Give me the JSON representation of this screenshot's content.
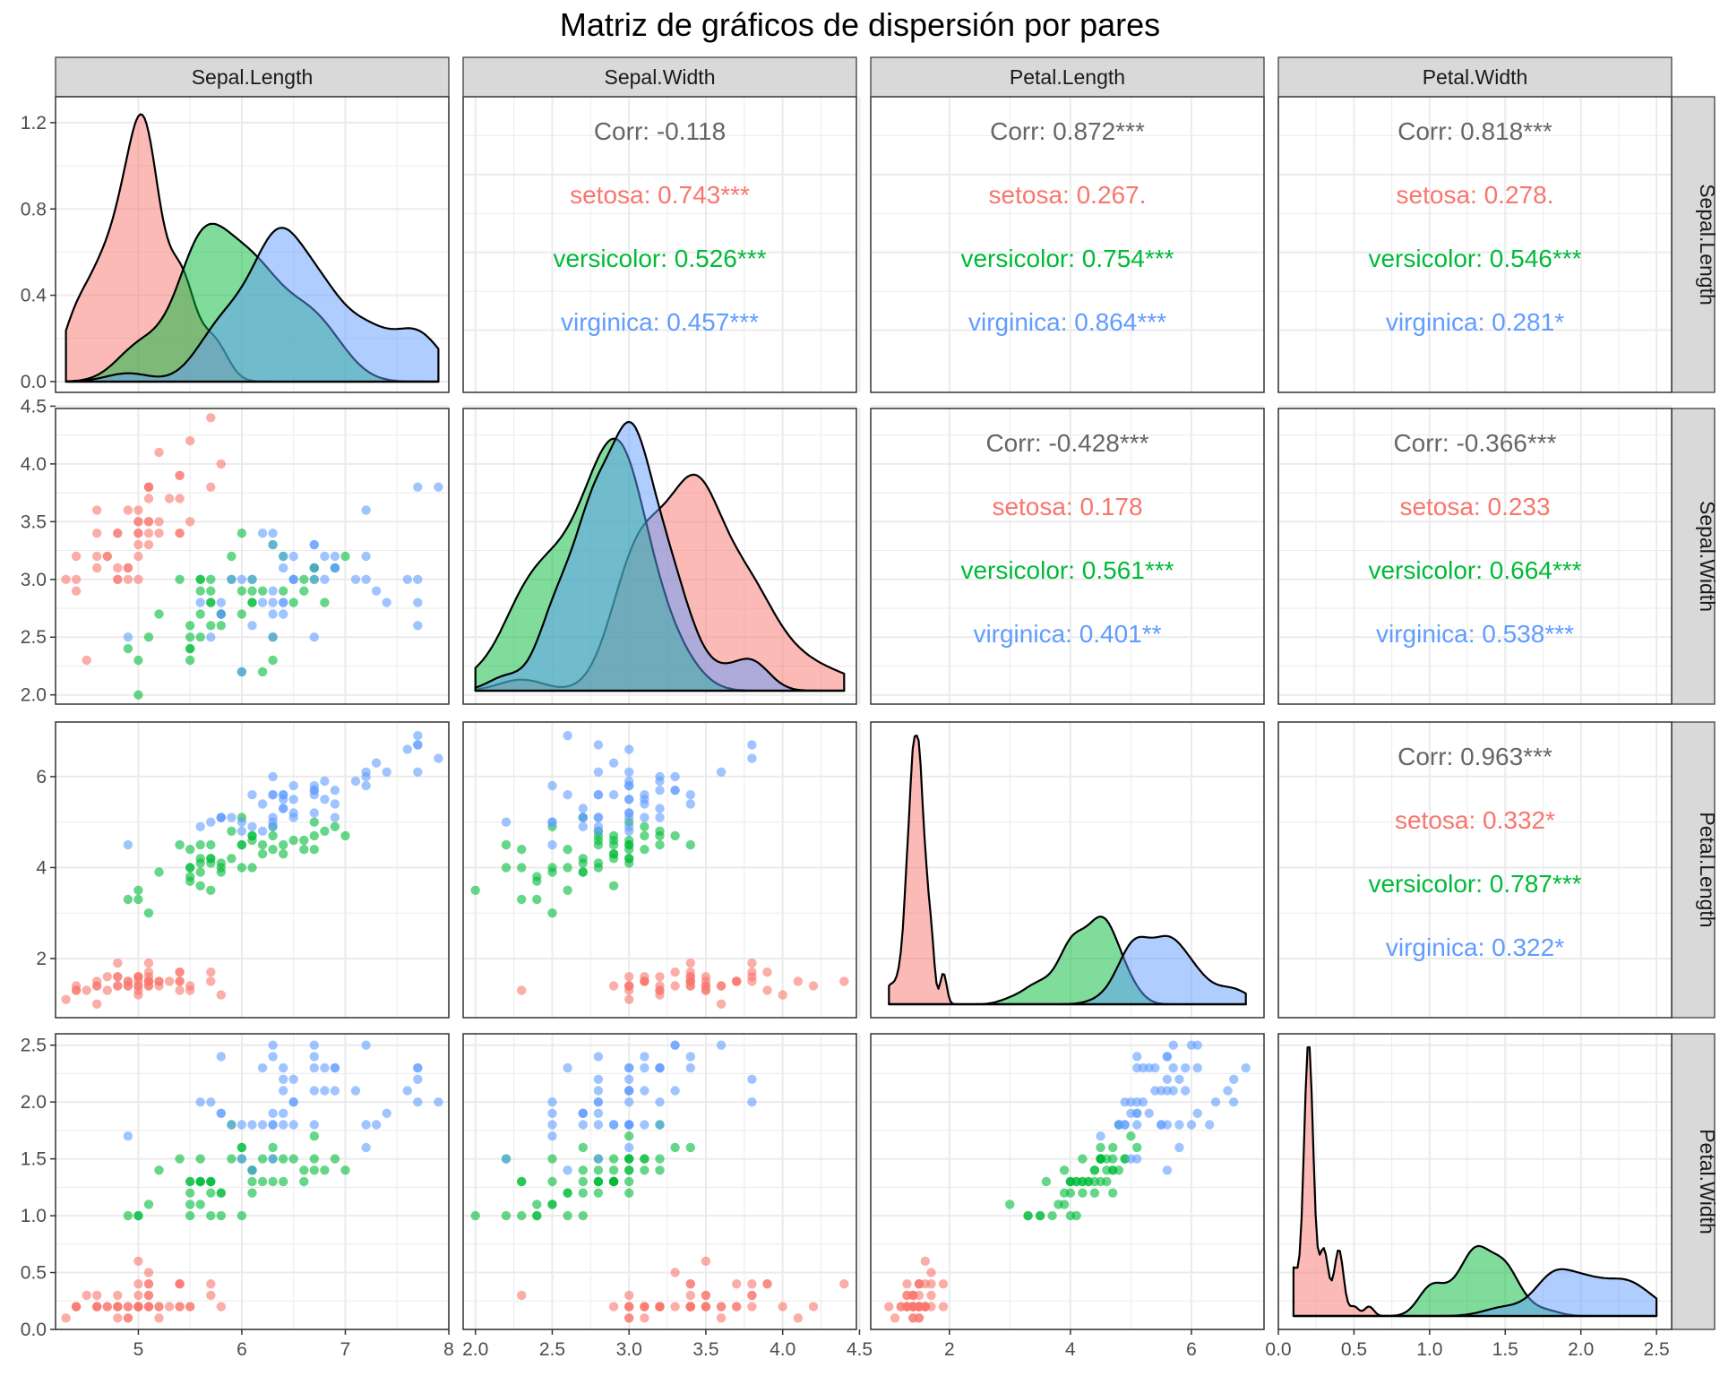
{
  "title": "Matriz de gráficos de dispersión por pares",
  "variables": [
    "Sepal.Length",
    "Sepal.Width",
    "Petal.Length",
    "Petal.Width"
  ],
  "colors": {
    "setosa": "#F8766D",
    "versicolor": "#00BA38",
    "virginica": "#619CFF",
    "overall": "#666666",
    "strip_bg": "#D9D9D9",
    "grid": "#EBEBEB"
  },
  "chart_data": {
    "type": "scatter",
    "subtype": "pairs-matrix",
    "title": "Matriz de gráficos de dispersión por pares",
    "groups": [
      "setosa",
      "versicolor",
      "virginica"
    ],
    "axes": {
      "Sepal.Length": {
        "range": [
          4.2,
          8.0
        ],
        "ticks": [
          5,
          6,
          7,
          8
        ],
        "tick_labels": [
          "5",
          "6",
          "7",
          "8"
        ]
      },
      "Sepal.Width": {
        "range": [
          1.92,
          4.48
        ],
        "ticks": [
          2.0,
          2.5,
          3.0,
          3.5,
          4.0,
          4.5
        ],
        "tick_labels": [
          "2.0",
          "2.5",
          "3.0",
          "3.5",
          "4.0",
          "4.5"
        ]
      },
      "Petal.Length": {
        "range": [
          0.7,
          7.2
        ],
        "ticks": [
          2,
          4,
          6
        ],
        "tick_labels": [
          "2",
          "4",
          "6"
        ]
      },
      "Petal.Width": {
        "range": [
          0.0,
          2.6
        ],
        "ticks": [
          0.0,
          0.5,
          1.0,
          1.5,
          2.0,
          2.5
        ],
        "tick_labels": [
          "0.0",
          "0.5",
          "1.0",
          "1.5",
          "2.0",
          "2.5"
        ]
      }
    },
    "density_axis": {
      "range": [
        -0.05,
        1.32
      ],
      "ticks": [
        0.0,
        0.4,
        0.8,
        1.2
      ],
      "tick_labels": [
        "0.0",
        "0.4",
        "0.8",
        "1.2"
      ]
    },
    "correlations": [
      {
        "row": "Sepal.Length",
        "col": "Sepal.Width",
        "lines": [
          {
            "group": "overall",
            "text": "Corr: -0.118"
          },
          {
            "group": "setosa",
            "text": "setosa: 0.743***"
          },
          {
            "group": "versicolor",
            "text": "versicolor: 0.526***"
          },
          {
            "group": "virginica",
            "text": "virginica: 0.457***"
          }
        ]
      },
      {
        "row": "Sepal.Length",
        "col": "Petal.Length",
        "lines": [
          {
            "group": "overall",
            "text": "Corr: 0.872***"
          },
          {
            "group": "setosa",
            "text": "setosa: 0.267."
          },
          {
            "group": "versicolor",
            "text": "versicolor: 0.754***"
          },
          {
            "group": "virginica",
            "text": "virginica: 0.864***"
          }
        ]
      },
      {
        "row": "Sepal.Length",
        "col": "Petal.Width",
        "lines": [
          {
            "group": "overall",
            "text": "Corr: 0.818***"
          },
          {
            "group": "setosa",
            "text": "setosa: 0.278."
          },
          {
            "group": "versicolor",
            "text": "versicolor: 0.546***"
          },
          {
            "group": "virginica",
            "text": "virginica: 0.281*"
          }
        ]
      },
      {
        "row": "Sepal.Width",
        "col": "Petal.Length",
        "lines": [
          {
            "group": "overall",
            "text": "Corr: -0.428***"
          },
          {
            "group": "setosa",
            "text": "setosa: 0.178"
          },
          {
            "group": "versicolor",
            "text": "versicolor: 0.561***"
          },
          {
            "group": "virginica",
            "text": "virginica: 0.401**"
          }
        ]
      },
      {
        "row": "Sepal.Width",
        "col": "Petal.Width",
        "lines": [
          {
            "group": "overall",
            "text": "Corr: -0.366***"
          },
          {
            "group": "setosa",
            "text": "setosa: 0.233"
          },
          {
            "group": "versicolor",
            "text": "versicolor: 0.664***"
          },
          {
            "group": "virginica",
            "text": "virginica: 0.538***"
          }
        ]
      },
      {
        "row": "Petal.Length",
        "col": "Petal.Width",
        "lines": [
          {
            "group": "overall",
            "text": "Corr: 0.963***"
          },
          {
            "group": "setosa",
            "text": "setosa: 0.332*"
          },
          {
            "group": "versicolor",
            "text": "versicolor: 0.787***"
          },
          {
            "group": "virginica",
            "text": "virginica: 0.322*"
          }
        ]
      }
    ],
    "data": {
      "setosa": [
        [
          5.1,
          3.5,
          1.4,
          0.2
        ],
        [
          4.9,
          3.0,
          1.4,
          0.2
        ],
        [
          4.7,
          3.2,
          1.3,
          0.2
        ],
        [
          4.6,
          3.1,
          1.5,
          0.2
        ],
        [
          5.0,
          3.6,
          1.4,
          0.2
        ],
        [
          5.4,
          3.9,
          1.7,
          0.4
        ],
        [
          4.6,
          3.4,
          1.4,
          0.3
        ],
        [
          5.0,
          3.4,
          1.5,
          0.2
        ],
        [
          4.4,
          2.9,
          1.4,
          0.2
        ],
        [
          4.9,
          3.1,
          1.5,
          0.1
        ],
        [
          5.4,
          3.7,
          1.5,
          0.2
        ],
        [
          4.8,
          3.4,
          1.6,
          0.2
        ],
        [
          4.8,
          3.0,
          1.4,
          0.1
        ],
        [
          4.3,
          3.0,
          1.1,
          0.1
        ],
        [
          5.8,
          4.0,
          1.2,
          0.2
        ],
        [
          5.7,
          4.4,
          1.5,
          0.4
        ],
        [
          5.4,
          3.9,
          1.3,
          0.4
        ],
        [
          5.1,
          3.5,
          1.4,
          0.3
        ],
        [
          5.7,
          3.8,
          1.7,
          0.3
        ],
        [
          5.1,
          3.8,
          1.5,
          0.3
        ],
        [
          5.4,
          3.4,
          1.7,
          0.2
        ],
        [
          5.1,
          3.7,
          1.5,
          0.4
        ],
        [
          4.6,
          3.6,
          1.0,
          0.2
        ],
        [
          5.1,
          3.3,
          1.7,
          0.5
        ],
        [
          4.8,
          3.4,
          1.9,
          0.2
        ],
        [
          5.0,
          3.0,
          1.6,
          0.2
        ],
        [
          5.0,
          3.4,
          1.6,
          0.4
        ],
        [
          5.2,
          3.5,
          1.5,
          0.2
        ],
        [
          5.2,
          3.4,
          1.4,
          0.2
        ],
        [
          4.7,
          3.2,
          1.6,
          0.2
        ],
        [
          4.8,
          3.1,
          1.6,
          0.2
        ],
        [
          5.4,
          3.4,
          1.5,
          0.4
        ],
        [
          5.2,
          4.1,
          1.5,
          0.1
        ],
        [
          5.5,
          4.2,
          1.4,
          0.2
        ],
        [
          4.9,
          3.1,
          1.5,
          0.2
        ],
        [
          5.0,
          3.2,
          1.2,
          0.2
        ],
        [
          5.5,
          3.5,
          1.3,
          0.2
        ],
        [
          4.9,
          3.6,
          1.4,
          0.1
        ],
        [
          4.4,
          3.0,
          1.3,
          0.2
        ],
        [
          5.1,
          3.4,
          1.5,
          0.2
        ],
        [
          5.0,
          3.5,
          1.3,
          0.3
        ],
        [
          4.5,
          2.3,
          1.3,
          0.3
        ],
        [
          4.4,
          3.2,
          1.3,
          0.2
        ],
        [
          5.0,
          3.5,
          1.6,
          0.6
        ],
        [
          5.1,
          3.8,
          1.9,
          0.4
        ],
        [
          4.8,
          3.0,
          1.4,
          0.3
        ],
        [
          5.1,
          3.8,
          1.6,
          0.2
        ],
        [
          4.6,
          3.2,
          1.4,
          0.2
        ],
        [
          5.3,
          3.7,
          1.5,
          0.2
        ],
        [
          5.0,
          3.3,
          1.4,
          0.2
        ]
      ],
      "versicolor": [
        [
          7.0,
          3.2,
          4.7,
          1.4
        ],
        [
          6.4,
          3.2,
          4.5,
          1.5
        ],
        [
          6.9,
          3.1,
          4.9,
          1.5
        ],
        [
          5.5,
          2.3,
          4.0,
          1.3
        ],
        [
          6.5,
          2.8,
          4.6,
          1.5
        ],
        [
          5.7,
          2.8,
          4.5,
          1.3
        ],
        [
          6.3,
          3.3,
          4.7,
          1.6
        ],
        [
          4.9,
          2.4,
          3.3,
          1.0
        ],
        [
          6.6,
          2.9,
          4.6,
          1.3
        ],
        [
          5.2,
          2.7,
          3.9,
          1.4
        ],
        [
          5.0,
          2.0,
          3.5,
          1.0
        ],
        [
          5.9,
          3.0,
          4.2,
          1.5
        ],
        [
          6.0,
          2.2,
          4.0,
          1.0
        ],
        [
          6.1,
          2.9,
          4.7,
          1.4
        ],
        [
          5.6,
          2.9,
          3.6,
          1.3
        ],
        [
          6.7,
          3.1,
          4.4,
          1.4
        ],
        [
          5.6,
          3.0,
          4.5,
          1.5
        ],
        [
          5.8,
          2.7,
          4.1,
          1.0
        ],
        [
          6.2,
          2.2,
          4.5,
          1.5
        ],
        [
          5.6,
          2.5,
          3.9,
          1.1
        ],
        [
          5.9,
          3.2,
          4.8,
          1.8
        ],
        [
          6.1,
          2.8,
          4.0,
          1.3
        ],
        [
          6.3,
          2.5,
          4.9,
          1.5
        ],
        [
          6.1,
          2.8,
          4.7,
          1.2
        ],
        [
          6.4,
          2.9,
          4.3,
          1.3
        ],
        [
          6.6,
          3.0,
          4.4,
          1.4
        ],
        [
          6.8,
          2.8,
          4.8,
          1.4
        ],
        [
          6.7,
          3.0,
          5.0,
          1.7
        ],
        [
          6.0,
          2.9,
          4.5,
          1.5
        ],
        [
          5.7,
          2.6,
          3.5,
          1.0
        ],
        [
          5.5,
          2.4,
          3.8,
          1.1
        ],
        [
          5.5,
          2.4,
          3.7,
          1.0
        ],
        [
          5.8,
          2.7,
          3.9,
          1.2
        ],
        [
          6.0,
          2.7,
          5.1,
          1.6
        ],
        [
          5.4,
          3.0,
          4.5,
          1.5
        ],
        [
          6.0,
          3.4,
          4.5,
          1.6
        ],
        [
          6.7,
          3.1,
          4.7,
          1.5
        ],
        [
          6.3,
          2.3,
          4.4,
          1.3
        ],
        [
          5.6,
          3.0,
          4.1,
          1.3
        ],
        [
          5.5,
          2.5,
          4.0,
          1.3
        ],
        [
          5.5,
          2.6,
          4.4,
          1.2
        ],
        [
          6.1,
          3.0,
          4.6,
          1.4
        ],
        [
          5.8,
          2.6,
          4.0,
          1.2
        ],
        [
          5.0,
          2.3,
          3.3,
          1.0
        ],
        [
          5.6,
          2.7,
          4.2,
          1.3
        ],
        [
          5.7,
          3.0,
          4.2,
          1.2
        ],
        [
          5.7,
          2.9,
          4.2,
          1.3
        ],
        [
          6.2,
          2.9,
          4.3,
          1.3
        ],
        [
          5.1,
          2.5,
          3.0,
          1.1
        ],
        [
          5.7,
          2.8,
          4.1,
          1.3
        ]
      ],
      "virginica": [
        [
          6.3,
          3.3,
          6.0,
          2.5
        ],
        [
          5.8,
          2.7,
          5.1,
          1.9
        ],
        [
          7.1,
          3.0,
          5.9,
          2.1
        ],
        [
          6.3,
          2.9,
          5.6,
          1.8
        ],
        [
          6.5,
          3.0,
          5.8,
          2.2
        ],
        [
          7.6,
          3.0,
          6.6,
          2.1
        ],
        [
          4.9,
          2.5,
          4.5,
          1.7
        ],
        [
          7.3,
          2.9,
          6.3,
          1.8
        ],
        [
          6.7,
          2.5,
          5.8,
          1.8
        ],
        [
          7.2,
          3.6,
          6.1,
          2.5
        ],
        [
          6.5,
          3.2,
          5.1,
          2.0
        ],
        [
          6.4,
          2.7,
          5.3,
          1.9
        ],
        [
          6.8,
          3.0,
          5.5,
          2.1
        ],
        [
          5.7,
          2.5,
          5.0,
          2.0
        ],
        [
          5.8,
          2.8,
          5.1,
          2.4
        ],
        [
          6.4,
          3.2,
          5.3,
          2.3
        ],
        [
          6.5,
          3.0,
          5.5,
          1.8
        ],
        [
          7.7,
          3.8,
          6.7,
          2.2
        ],
        [
          7.7,
          2.6,
          6.9,
          2.3
        ],
        [
          6.0,
          2.2,
          5.0,
          1.5
        ],
        [
          6.9,
          3.2,
          5.7,
          2.3
        ],
        [
          5.6,
          2.8,
          4.9,
          2.0
        ],
        [
          7.7,
          2.8,
          6.7,
          2.0
        ],
        [
          6.3,
          2.7,
          4.9,
          1.8
        ],
        [
          6.7,
          3.3,
          5.7,
          2.1
        ],
        [
          7.2,
          3.2,
          6.0,
          1.8
        ],
        [
          6.2,
          2.8,
          4.8,
          1.8
        ],
        [
          6.1,
          3.0,
          4.9,
          1.8
        ],
        [
          6.4,
          2.8,
          5.6,
          2.1
        ],
        [
          7.2,
          3.0,
          5.8,
          1.6
        ],
        [
          7.4,
          2.8,
          6.1,
          1.9
        ],
        [
          7.9,
          3.8,
          6.4,
          2.0
        ],
        [
          6.4,
          2.8,
          5.6,
          2.2
        ],
        [
          6.3,
          2.8,
          5.1,
          1.5
        ],
        [
          6.1,
          2.6,
          5.6,
          1.4
        ],
        [
          7.7,
          3.0,
          6.1,
          2.3
        ],
        [
          6.3,
          3.4,
          5.6,
          2.4
        ],
        [
          6.4,
          3.1,
          5.5,
          1.8
        ],
        [
          6.0,
          3.0,
          4.8,
          1.8
        ],
        [
          6.9,
          3.1,
          5.4,
          2.1
        ],
        [
          6.7,
          3.1,
          5.6,
          2.4
        ],
        [
          6.9,
          3.1,
          5.1,
          2.3
        ],
        [
          5.8,
          2.7,
          5.1,
          1.9
        ],
        [
          6.8,
          3.2,
          5.9,
          2.3
        ],
        [
          6.7,
          3.3,
          5.7,
          2.5
        ],
        [
          6.7,
          3.0,
          5.2,
          2.3
        ],
        [
          6.3,
          2.5,
          5.0,
          1.9
        ],
        [
          6.5,
          3.0,
          5.2,
          2.0
        ],
        [
          6.2,
          3.4,
          5.4,
          2.3
        ],
        [
          5.9,
          3.0,
          5.1,
          1.8
        ]
      ]
    }
  }
}
